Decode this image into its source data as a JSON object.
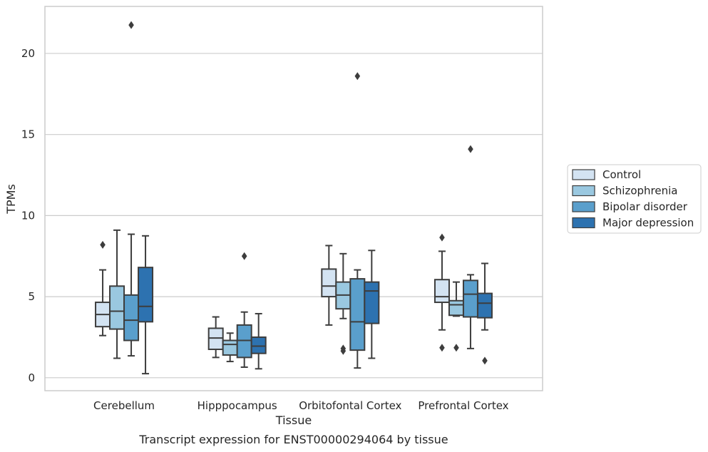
{
  "chart_data": {
    "type": "box",
    "xlabel": "Tissue",
    "ylabel": "TPMs",
    "caption": "Transcript expression for ENST00000294064 by tissue",
    "ylim": [
      -0.8,
      22.9
    ],
    "yticks": [
      0,
      5,
      10,
      15,
      20
    ],
    "grid": "horizontal",
    "legend_placement": "right",
    "categories": [
      "Cerebellum",
      "Hipppocampus",
      "Orbitofontal Cortex",
      "Prefrontal Cortex"
    ],
    "series": [
      {
        "name": "Control",
        "color": "#d3e3f2",
        "boxes": [
          {
            "whislo": 2.6,
            "q1": 3.15,
            "med": 3.9,
            "q3": 4.65,
            "whishi": 6.65,
            "fliers": [
              8.2
            ]
          },
          {
            "whislo": 1.25,
            "q1": 1.75,
            "med": 2.45,
            "q3": 3.05,
            "whishi": 3.75,
            "fliers": []
          },
          {
            "whislo": 3.25,
            "q1": 5.0,
            "med": 5.65,
            "q3": 6.7,
            "whishi": 8.15,
            "fliers": []
          },
          {
            "whislo": 2.95,
            "q1": 4.65,
            "med": 5.0,
            "q3": 6.05,
            "whishi": 7.8,
            "fliers": [
              8.65,
              1.85
            ]
          }
        ]
      },
      {
        "name": "Schizophrenia",
        "color": "#9ac8e0",
        "boxes": [
          {
            "whislo": 1.2,
            "q1": 3.0,
            "med": 4.1,
            "q3": 5.65,
            "whishi": 9.1,
            "fliers": []
          },
          {
            "whislo": 1.0,
            "q1": 1.4,
            "med": 2.05,
            "q3": 2.3,
            "whishi": 2.75,
            "fliers": []
          },
          {
            "whislo": 3.65,
            "q1": 4.25,
            "med": 5.1,
            "q3": 5.9,
            "whishi": 7.65,
            "fliers": [
              1.8,
              1.65
            ]
          },
          {
            "whislo": 3.8,
            "q1": 3.85,
            "med": 4.5,
            "q3": 4.75,
            "whishi": 5.9,
            "fliers": [
              1.85
            ]
          }
        ]
      },
      {
        "name": "Bipolar disorder",
        "color": "#5a9fcc",
        "boxes": [
          {
            "whislo": 1.35,
            "q1": 2.3,
            "med": 3.55,
            "q3": 5.1,
            "whishi": 8.85,
            "fliers": [
              21.75
            ]
          },
          {
            "whislo": 0.65,
            "q1": 1.25,
            "med": 2.3,
            "q3": 3.25,
            "whishi": 4.05,
            "fliers": [
              7.5
            ]
          },
          {
            "whislo": 0.6,
            "q1": 1.7,
            "med": 3.45,
            "q3": 6.1,
            "whishi": 6.65,
            "fliers": [
              18.6
            ]
          },
          {
            "whislo": 1.8,
            "q1": 3.75,
            "med": 5.15,
            "q3": 6.0,
            "whishi": 6.35,
            "fliers": [
              14.1
            ]
          }
        ]
      },
      {
        "name": "Major depression",
        "color": "#2d72b0",
        "boxes": [
          {
            "whislo": 0.25,
            "q1": 3.45,
            "med": 4.4,
            "q3": 6.8,
            "whishi": 8.75,
            "fliers": []
          },
          {
            "whislo": 0.55,
            "q1": 1.5,
            "med": 1.95,
            "q3": 2.5,
            "whishi": 3.95,
            "fliers": []
          },
          {
            "whislo": 1.2,
            "q1": 3.35,
            "med": 5.35,
            "q3": 5.9,
            "whishi": 7.85,
            "fliers": []
          },
          {
            "whislo": 2.95,
            "q1": 3.7,
            "med": 4.6,
            "q3": 5.2,
            "whishi": 7.05,
            "fliers": [
              1.05
            ]
          }
        ]
      }
    ]
  }
}
